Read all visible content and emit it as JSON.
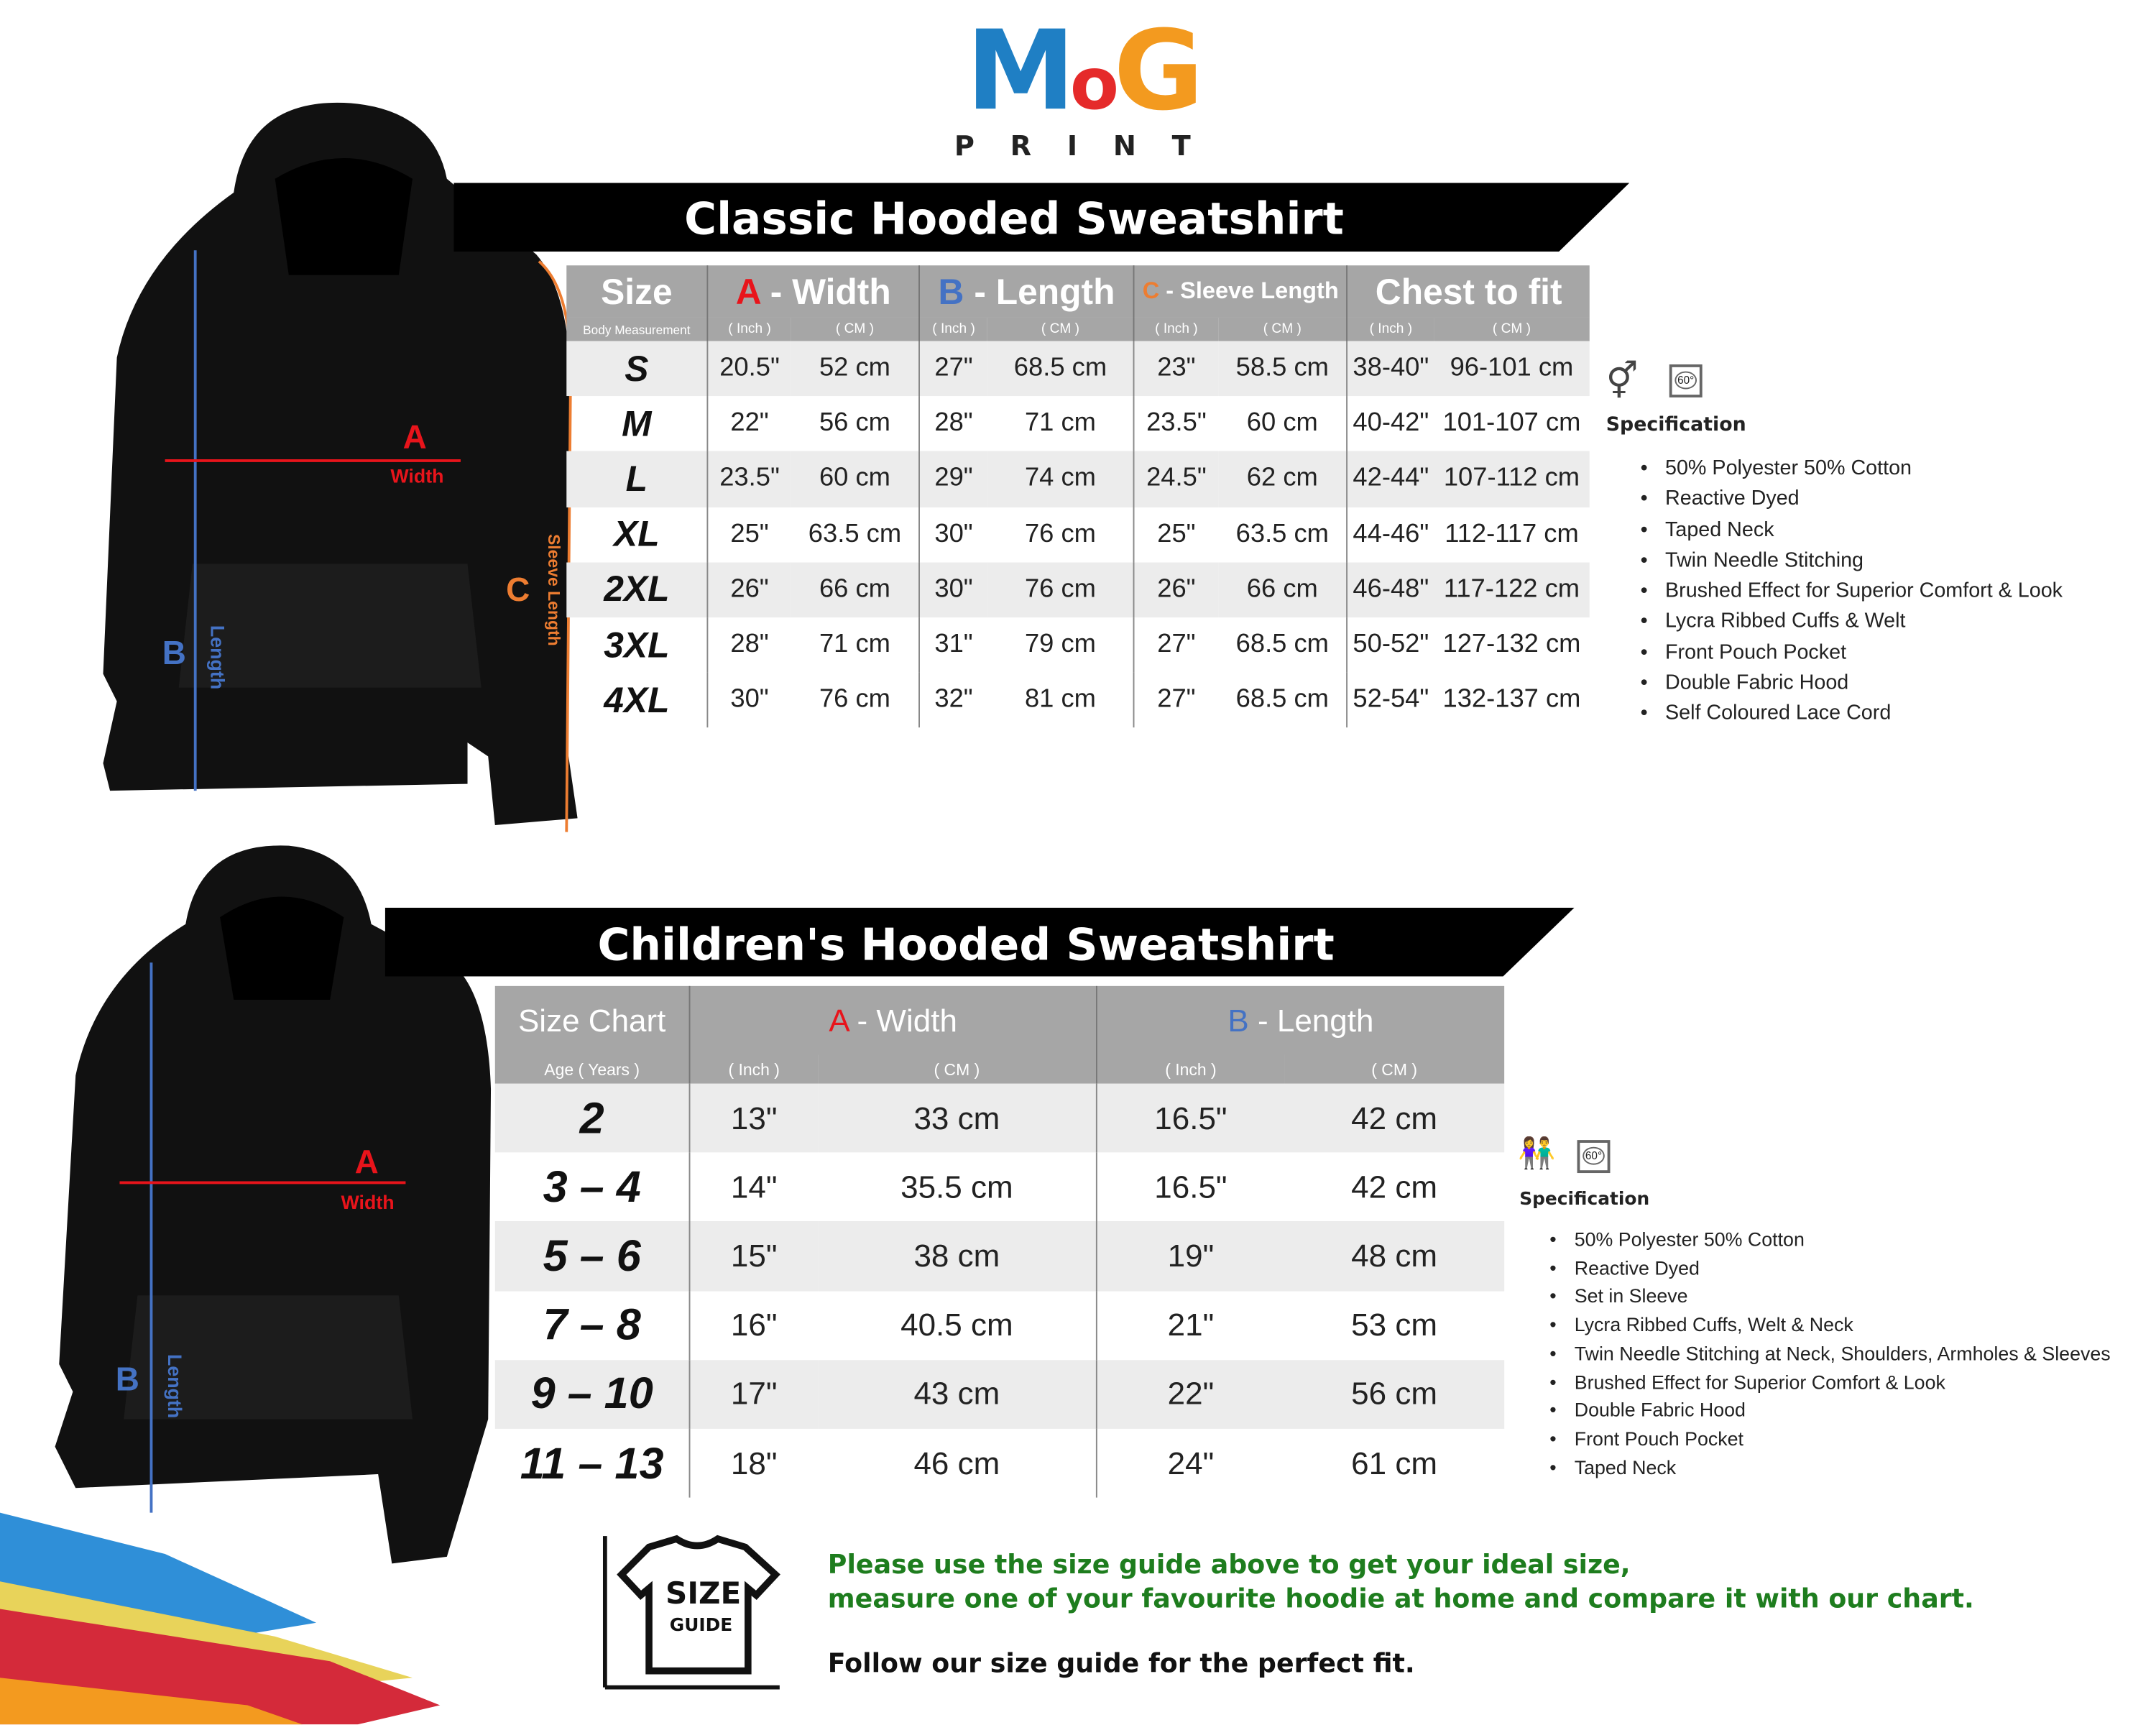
{
  "logo": {
    "main": "MoG",
    "sub": "PRINT",
    "colors": {
      "M": "#1f7fc4",
      "o": "#e52a2a",
      "G": "#f39a1f"
    }
  },
  "adult": {
    "title": "Classic Hooded Sweatshirt",
    "headers": {
      "size": "Size",
      "size_sub": "Body Measurement",
      "a_letter": "A",
      "a_label": " - Width",
      "b_letter": "B",
      "b_label": " - Length",
      "c_letter": "C",
      "c_label": " - Sleeve Length",
      "chest": "Chest to fit",
      "inch": "( Inch )",
      "cm": "( CM )"
    },
    "rows": [
      [
        "S",
        "20.5\"",
        "52 cm",
        "27\"",
        "68.5 cm",
        "23\"",
        "58.5 cm",
        "38-40\"",
        "96-101 cm"
      ],
      [
        "M",
        "22\"",
        "56 cm",
        "28\"",
        "71 cm",
        "23.5\"",
        "60 cm",
        "40-42\"",
        "101-107 cm"
      ],
      [
        "L",
        "23.5\"",
        "60 cm",
        "29\"",
        "74 cm",
        "24.5\"",
        "62 cm",
        "42-44\"",
        "107-112 cm"
      ],
      [
        "XL",
        "25\"",
        "63.5 cm",
        "30\"",
        "76 cm",
        "25\"",
        "63.5 cm",
        "44-46\"",
        "112-117 cm"
      ],
      [
        "2XL",
        "26\"",
        "66 cm",
        "30\"",
        "76 cm",
        "26\"",
        "66 cm",
        "46-48\"",
        "117-122 cm"
      ],
      [
        "3XL",
        "28\"",
        "71 cm",
        "31\"",
        "79 cm",
        "27\"",
        "68.5 cm",
        "50-52\"",
        "127-132 cm"
      ],
      [
        "4XL",
        "30\"",
        "76 cm",
        "32\"",
        "81 cm",
        "27\"",
        "68.5 cm",
        "52-54\"",
        "132-137 cm"
      ]
    ],
    "diagram": {
      "a": "A",
      "a_label": "Width",
      "b": "B",
      "b_label": "Length",
      "c": "C",
      "c_label": "Sleeve Length"
    },
    "spec_title": "Specification",
    "wash": "60°",
    "spec": [
      "50% Polyester 50% Cotton",
      "Reactive Dyed",
      "Taped Neck",
      "Twin Needle Stitching",
      "Brushed Effect for Superior Comfort & Look",
      "Lycra Ribbed Cuffs & Welt",
      "Front Pouch Pocket",
      "Double Fabric Hood",
      "Self Coloured Lace Cord"
    ]
  },
  "kids": {
    "title": "Children's Hooded Sweatshirt",
    "headers": {
      "size": "Size Chart",
      "size_sub": "Age ( Years )",
      "a_letter": "A",
      "a_label": " - Width",
      "b_letter": "B",
      "b_label": " - Length",
      "inch": "( Inch )",
      "cm": "( CM )"
    },
    "rows": [
      [
        "2",
        "13\"",
        "33 cm",
        "16.5\"",
        "42 cm"
      ],
      [
        "3 – 4",
        "14\"",
        "35.5 cm",
        "16.5\"",
        "42 cm"
      ],
      [
        "5 – 6",
        "15\"",
        "38 cm",
        "19\"",
        "48 cm"
      ],
      [
        "7 – 8",
        "16\"",
        "40.5 cm",
        "21\"",
        "53 cm"
      ],
      [
        "9 – 10",
        "17\"",
        "43 cm",
        "22\"",
        "56 cm"
      ],
      [
        "11 – 13",
        "18\"",
        "46 cm",
        "24\"",
        "61 cm"
      ]
    ],
    "diagram": {
      "a": "A",
      "a_label": "Width",
      "b": "B",
      "b_label": "Length"
    },
    "spec_title": "Specification",
    "wash": "60°",
    "spec": [
      "50% Polyester 50% Cotton",
      "Reactive Dyed",
      "Set in Sleeve",
      "Lycra Ribbed Cuffs, Welt & Neck",
      "Twin Needle Stitching at Neck, Shoulders, Armholes & Sleeves",
      "Brushed Effect for Superior Comfort & Look",
      "Double Fabric Hood",
      "Front Pouch Pocket",
      "Taped Neck"
    ]
  },
  "guide": {
    "icon_line1": "SIZE",
    "icon_line2": "GUIDE",
    "line1": "Please use the size guide above to get your ideal size,",
    "line2": "measure one of your favourite hoodie at home and compare it with our chart.",
    "line3": "Follow our size guide for the perfect fit."
  },
  "colors": {
    "a": "#e8141b",
    "b": "#4472c4",
    "c": "#ed7d31",
    "header": "#a6a6a6",
    "green": "#1e7d1e"
  }
}
